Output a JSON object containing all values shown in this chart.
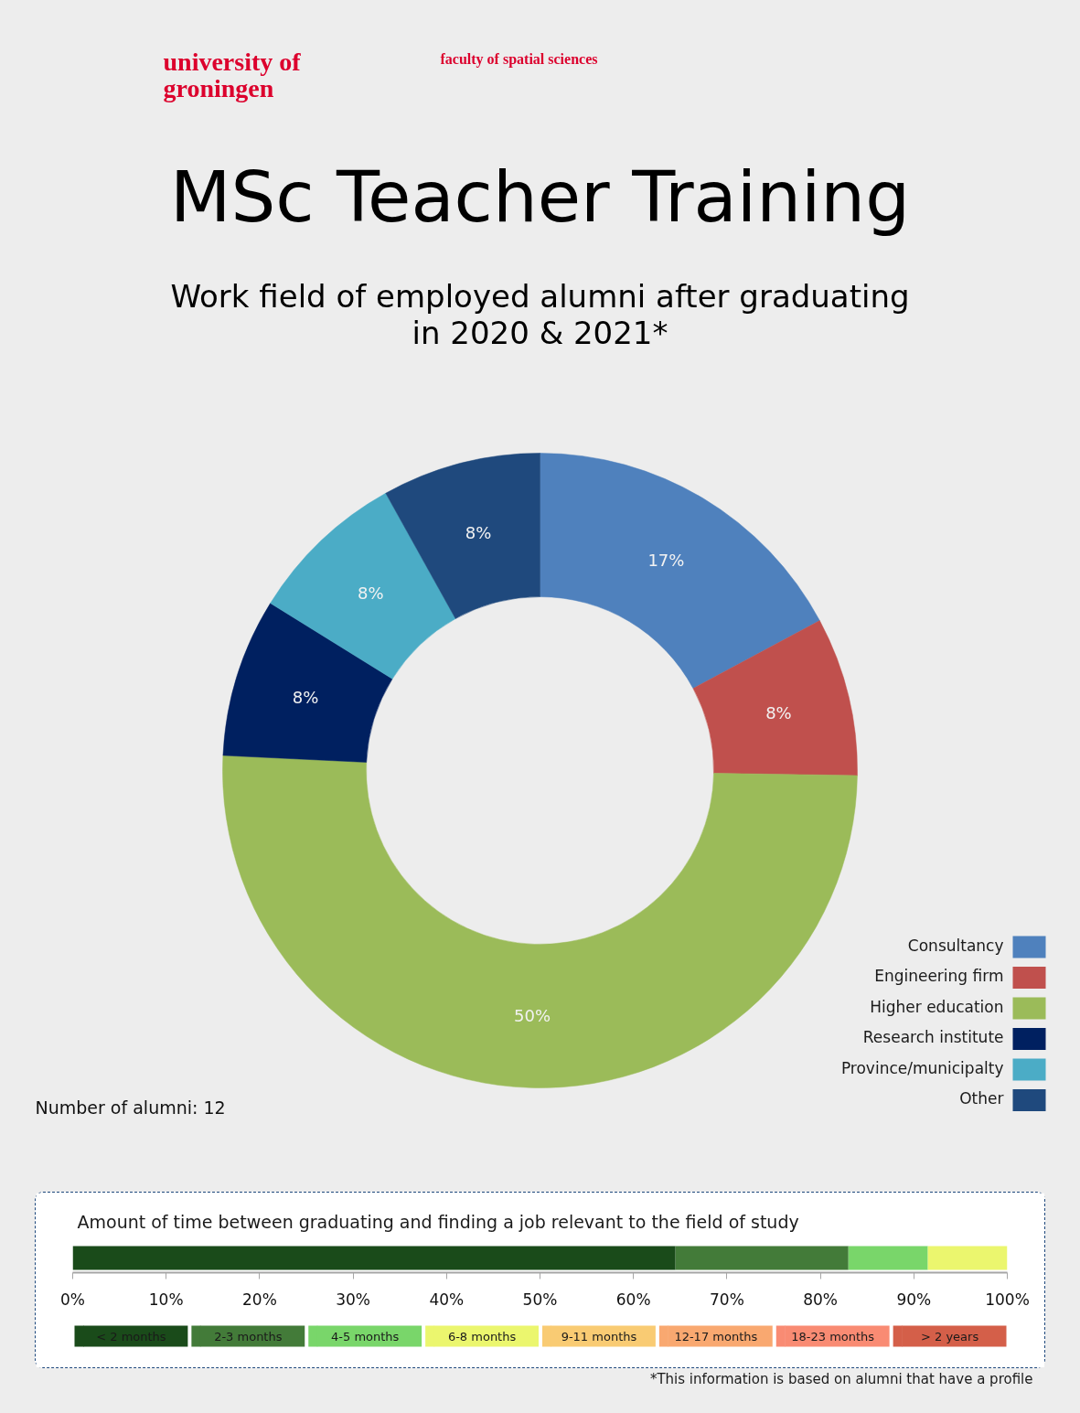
{
  "chart_data": [
    {
      "type": "donut",
      "title": "MSc Teacher Training",
      "subtitle": "Work field of employed alumni after graduating in 2020 & 2021*",
      "categories": [
        "Consultancy",
        "Engineering firm",
        "Higher education",
        "Research institute",
        "Province/municipalty",
        "Other"
      ],
      "values": [
        17,
        8,
        50,
        8,
        8,
        8
      ],
      "value_labels": [
        "17%",
        "8%",
        "50%",
        "8%",
        "8%",
        "8%"
      ],
      "colors": [
        "#4f81bd",
        "#c0504d",
        "#9bbb59",
        "#002060",
        "#4bacc6",
        "#1f497d"
      ],
      "legend": "bottom right",
      "annotations": [
        "university of groningen",
        "faculty of spatial sciences",
        "Number of alumni: 12"
      ]
    },
    {
      "type": "bar",
      "title": "Amount of time between graduating and finding a job relevant to the field of study",
      "orientation": "horizontal",
      "stacked": true,
      "categories": [
        null
      ],
      "series": [
        {
          "name": "< 2 months",
          "color": "#1a4b1a",
          "values": [
            64.5
          ]
        },
        {
          "name": "2-3 months",
          "color": "#437b39",
          "values": [
            18.5
          ]
        },
        {
          "name": "4-5 months",
          "color": "#79d66a",
          "values": [
            8.5
          ]
        },
        {
          "name": "6-8 months",
          "color": "#ebf66e",
          "values": [
            8.5
          ]
        },
        {
          "name": "9-11 months",
          "color": "#f9cb73",
          "values": [
            0
          ]
        },
        {
          "name": "12-17 months",
          "color": "#f9a870",
          "values": [
            0
          ]
        },
        {
          "name": "18-23 months",
          "color": "#f98b73",
          "values": [
            0
          ]
        },
        {
          "name": "> 2 years",
          "color": "#d45f49",
          "values": [
            0
          ]
        }
      ],
      "xlim": [
        0,
        100
      ],
      "xticks": [
        {
          "value": 0,
          "label": "0%"
        },
        {
          "value": 10,
          "label": "10%"
        },
        {
          "value": 20,
          "label": "20%"
        },
        {
          "value": 30,
          "label": "30%"
        },
        {
          "value": 40,
          "label": "40%"
        },
        {
          "value": 50,
          "label": "50%"
        },
        {
          "value": 60,
          "label": "60%"
        },
        {
          "value": 70,
          "label": "70%"
        },
        {
          "value": 80,
          "label": "80%"
        },
        {
          "value": 90,
          "label": "90%"
        },
        {
          "value": 100,
          "label": "100%"
        }
      ],
      "tick_labels": "x",
      "legend": "bottom",
      "annotations": [
        "*This information is based on alumni that have a profile"
      ]
    }
  ]
}
